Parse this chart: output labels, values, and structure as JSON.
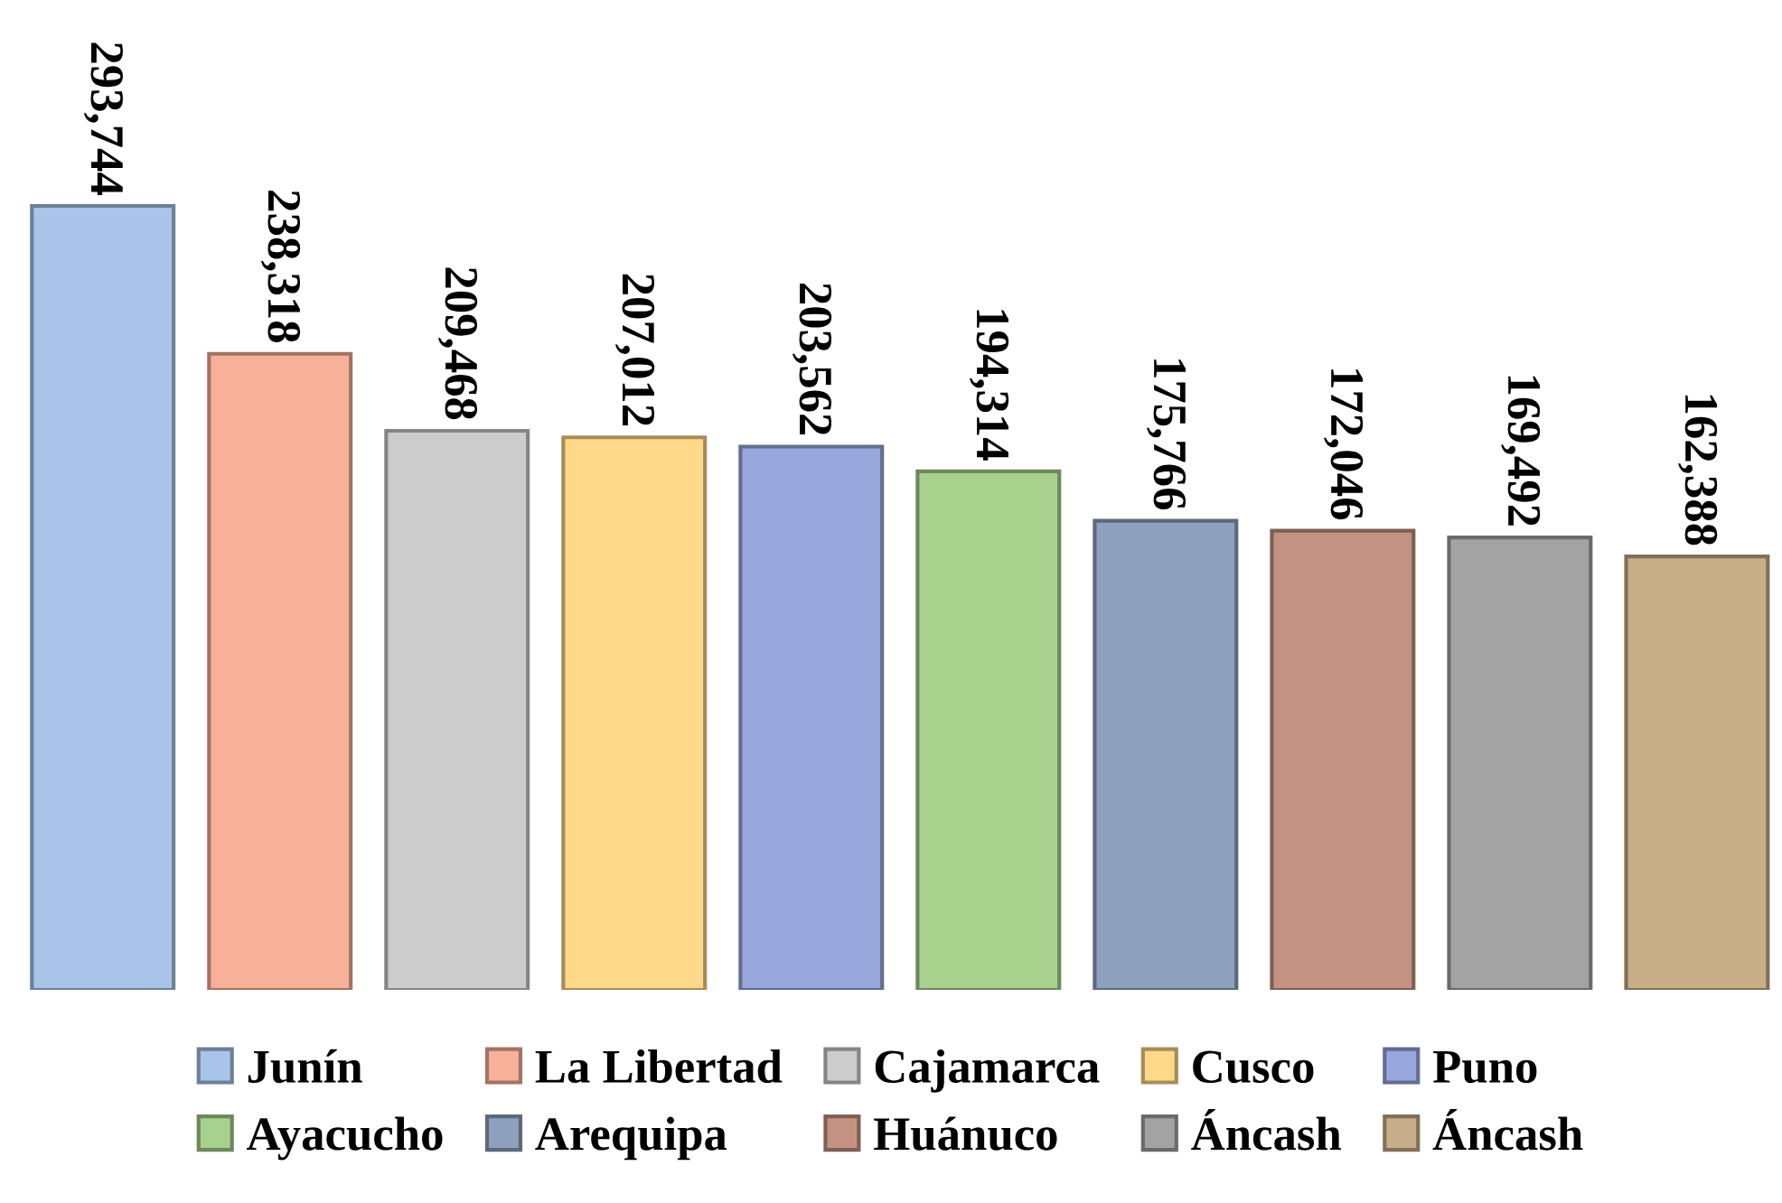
{
  "chart_data": {
    "type": "bar",
    "stacked": true,
    "grid": false,
    "categories": [
      null,
      null,
      null,
      null,
      null,
      null,
      null,
      null,
      null,
      null
    ],
    "series": [
      {
        "name": "Junín",
        "color": "#a9c4e8",
        "values": [
          293744,
          0,
          0,
          0,
          0,
          0,
          0,
          0,
          0,
          0
        ],
        "value_labels": [
          "293,744",
          null,
          null,
          null,
          null,
          null,
          null,
          null,
          null,
          null
        ]
      },
      {
        "name": "La Libertad",
        "color": "#f7b19a",
        "values": [
          0,
          238318,
          0,
          0,
          0,
          0,
          0,
          0,
          0,
          0
        ],
        "value_labels": [
          null,
          "238,318",
          null,
          null,
          null,
          null,
          null,
          null,
          null,
          null
        ]
      },
      {
        "name": "Cajamarca",
        "color": "#cccccc",
        "values": [
          0,
          0,
          209468,
          0,
          0,
          0,
          0,
          0,
          0,
          0
        ],
        "value_labels": [
          null,
          null,
          "209,468",
          null,
          null,
          null,
          null,
          null,
          null,
          null
        ]
      },
      {
        "name": "Cusco",
        "color": "#ffd98a",
        "values": [
          0,
          0,
          0,
          207012,
          0,
          0,
          0,
          0,
          0,
          0
        ],
        "value_labels": [
          null,
          null,
          null,
          "207,012",
          null,
          null,
          null,
          null,
          null,
          null
        ]
      },
      {
        "name": "Puno",
        "color": "#98a8dc",
        "values": [
          0,
          0,
          0,
          0,
          203562,
          0,
          0,
          0,
          0,
          0
        ],
        "value_labels": [
          null,
          null,
          null,
          null,
          "203,562",
          null,
          null,
          null,
          null,
          null
        ]
      },
      {
        "name": "Ayacucho",
        "color": "#a9d18e",
        "values": [
          0,
          0,
          0,
          0,
          0,
          194314,
          0,
          0,
          0,
          0
        ],
        "value_labels": [
          null,
          null,
          null,
          null,
          null,
          "194,314",
          null,
          null,
          null,
          null
        ]
      },
      {
        "name": "Arequipa",
        "color": "#8ea0bd",
        "values": [
          0,
          0,
          0,
          0,
          0,
          0,
          175766,
          0,
          0,
          0
        ],
        "value_labels": [
          null,
          null,
          null,
          null,
          null,
          null,
          "175,766",
          null,
          null,
          null
        ]
      },
      {
        "name": "Huánuco",
        "color": "#c49282",
        "values": [
          0,
          0,
          0,
          0,
          0,
          0,
          0,
          172046,
          0,
          0
        ],
        "value_labels": [
          null,
          null,
          null,
          null,
          null,
          null,
          null,
          "172,046",
          null,
          null
        ]
      },
      {
        "name": "Áncash",
        "color": "#a3a3a3",
        "values": [
          0,
          0,
          0,
          0,
          0,
          0,
          0,
          0,
          169492,
          0
        ],
        "value_labels": [
          null,
          null,
          null,
          null,
          null,
          null,
          null,
          null,
          "169,492",
          null
        ]
      },
      {
        "name": "Áncash",
        "color": "#c8ae88",
        "values": [
          0,
          0,
          0,
          0,
          0,
          0,
          0,
          0,
          0,
          162388
        ],
        "value_labels": [
          null,
          null,
          null,
          null,
          null,
          null,
          null,
          null,
          null,
          "162,388"
        ]
      }
    ],
    "legend": "bottom"
  }
}
